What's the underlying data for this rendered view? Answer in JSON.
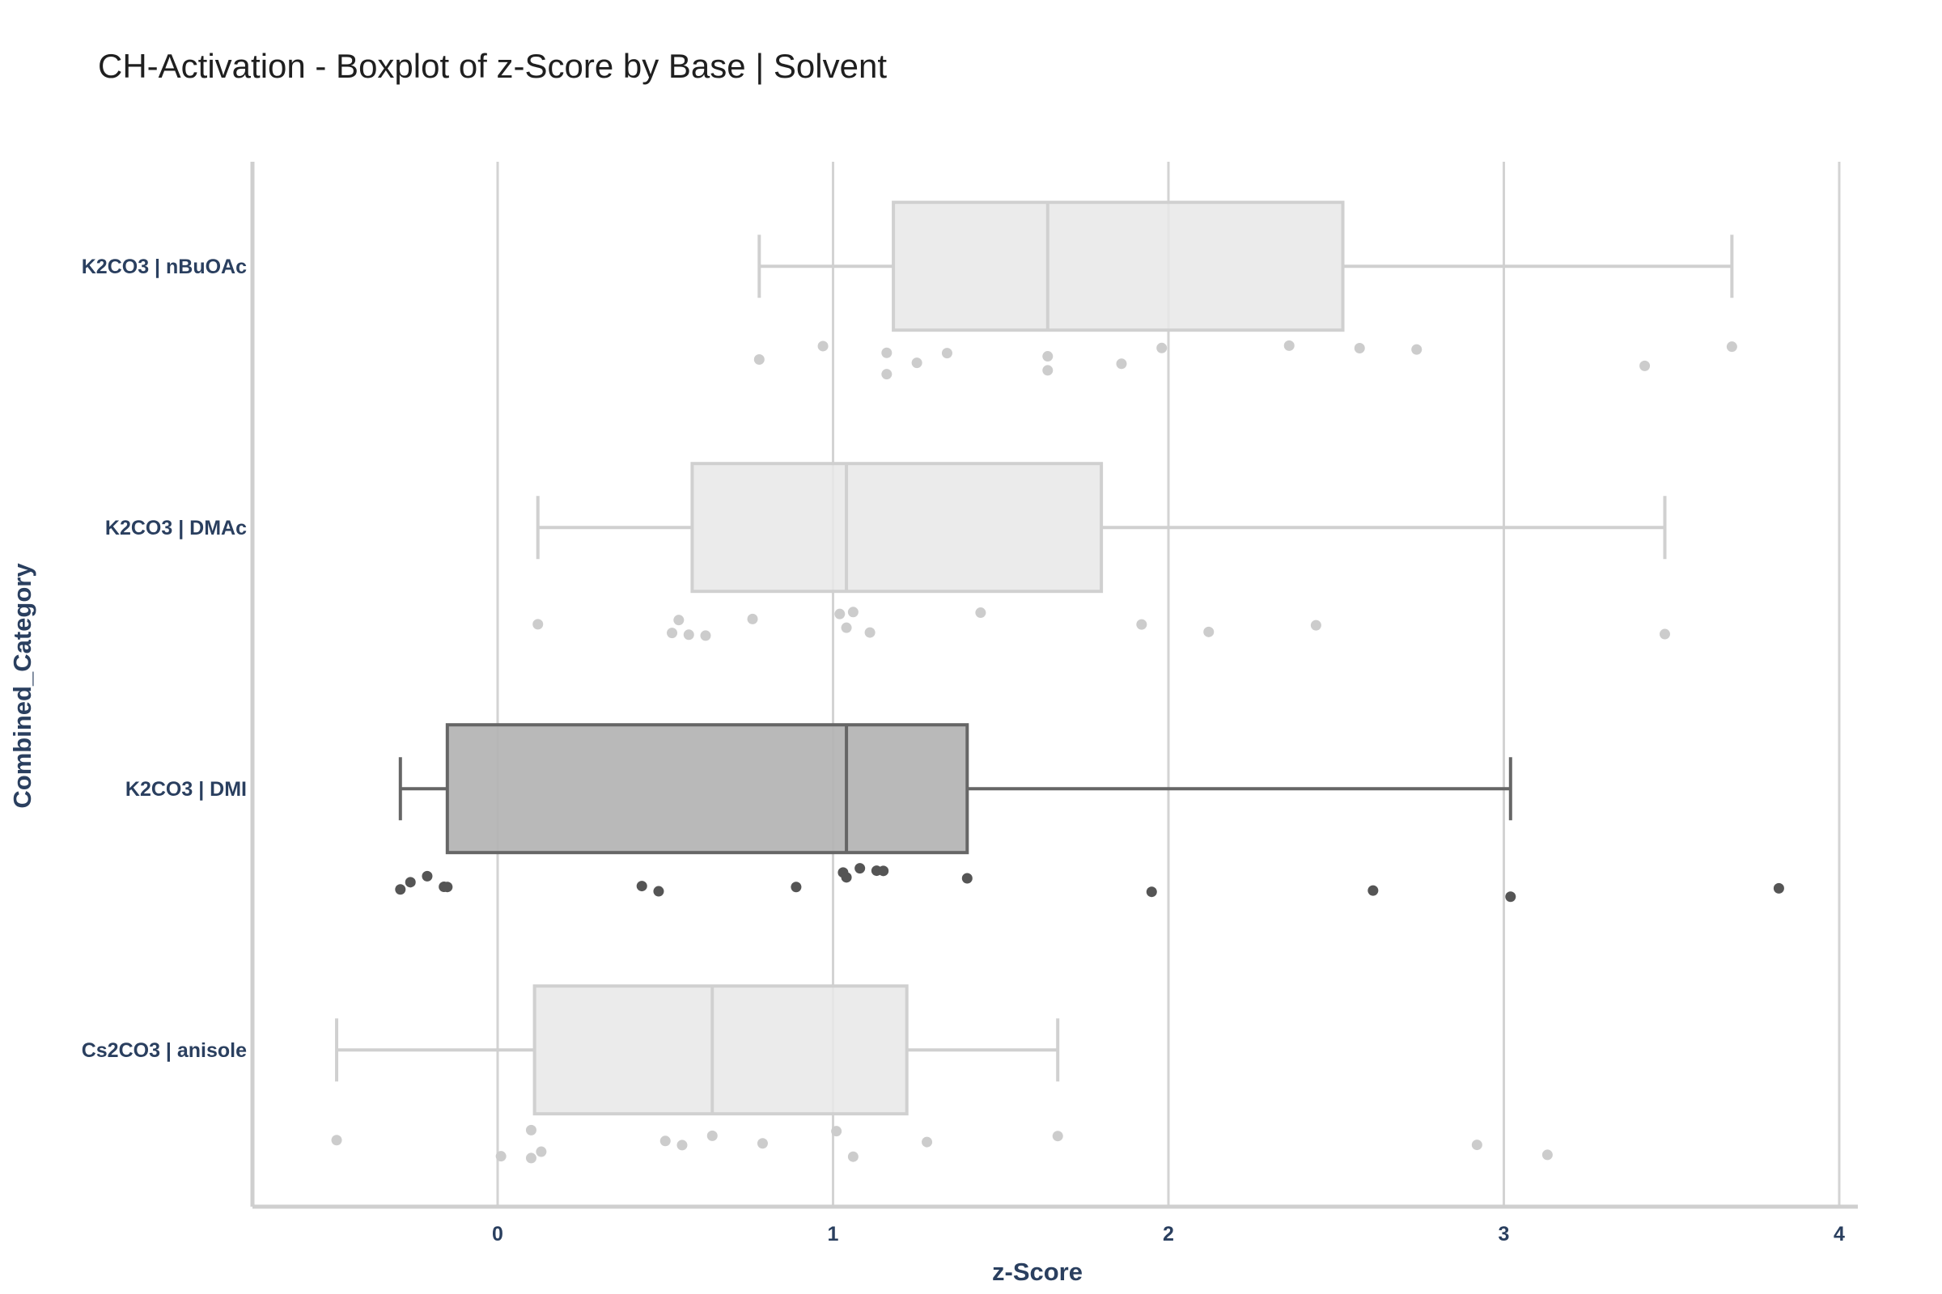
{
  "chart_data": {
    "type": "box",
    "title": "CH-Activation - Boxplot of z-Score by Base | Solvent",
    "xlabel": "z-Score",
    "ylabel": "Combined_Category",
    "xlim": [
      -0.73,
      4.06
    ],
    "x_ticks": [
      0,
      1,
      2,
      3,
      4
    ],
    "orientation": "horizontal",
    "grid": "vertical lines at x ticks",
    "categories": [
      "K2CO3 | nBuOAc",
      "K2CO3 | DMAc",
      "K2CO3 | DMI",
      "Cs2CO3 | anisole"
    ],
    "boxes": [
      {
        "category": "K2CO3 | nBuOAc",
        "whisker_low": 0.78,
        "q1": 1.18,
        "median": 1.64,
        "q3": 2.52,
        "whisker_high": 3.68,
        "highlight": false,
        "points": [
          0.78,
          0.97,
          1.16,
          1.16,
          1.25,
          1.34,
          1.64,
          1.64,
          1.86,
          1.98,
          2.36,
          2.57,
          2.74,
          3.42,
          3.68
        ]
      },
      {
        "category": "K2CO3 | DMAc",
        "whisker_low": 0.12,
        "q1": 0.58,
        "median": 1.04,
        "q3": 1.8,
        "whisker_high": 3.48,
        "highlight": false,
        "points": [
          0.12,
          0.52,
          0.54,
          0.57,
          0.62,
          0.76,
          1.02,
          1.04,
          1.06,
          1.11,
          1.44,
          1.92,
          2.12,
          2.44,
          3.48
        ]
      },
      {
        "category": "K2CO3 | DMI",
        "whisker_low": -0.29,
        "q1": -0.15,
        "median": 1.04,
        "q3": 1.4,
        "whisker_high": 3.02,
        "highlight": true,
        "points": [
          -0.29,
          -0.26,
          -0.21,
          -0.16,
          -0.15,
          0.43,
          0.48,
          0.89,
          1.03,
          1.04,
          1.08,
          1.13,
          1.15,
          1.4,
          1.95,
          2.61,
          3.02,
          3.82
        ]
      },
      {
        "category": "Cs2CO3 | anisole",
        "whisker_low": -0.48,
        "q1": 0.11,
        "median": 0.64,
        "q3": 1.22,
        "whisker_high": 1.67,
        "highlight": false,
        "points": [
          -0.48,
          0.01,
          0.1,
          0.1,
          0.13,
          0.5,
          0.55,
          0.64,
          0.79,
          1.01,
          1.06,
          1.28,
          1.67,
          2.92,
          3.13
        ]
      }
    ],
    "colors": {
      "box_fill": "#e8e8e8",
      "box_line": "#d0d0d0",
      "point": "#cccccc",
      "highlight_fill": "#b3b3b3",
      "highlight_line": "#666666",
      "highlight_point": "#555555",
      "grid": "#d3d3d3",
      "axis": "#cfcfcf",
      "text": "#2a3f5f"
    }
  }
}
